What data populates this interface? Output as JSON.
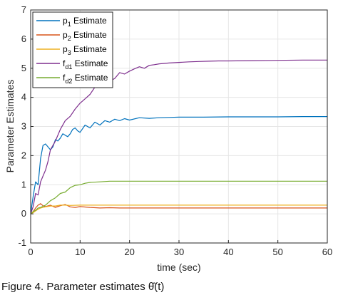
{
  "chart_data": {
    "type": "line",
    "xlabel": "time (sec)",
    "ylabel": "Parameter Estimates",
    "xlim": [
      0,
      60
    ],
    "ylim": [
      -1,
      7
    ],
    "xticks": [
      "0",
      "10",
      "20",
      "30",
      "40",
      "50",
      "60"
    ],
    "yticks": [
      "-1",
      "0",
      "1",
      "2",
      "3",
      "4",
      "5",
      "6",
      "7"
    ],
    "grid": true,
    "legend_position": "top-left",
    "series": [
      {
        "name": "p1 Estimate",
        "label_main": "p",
        "label_sub": "1",
        "label_rest": " Estimate",
        "color": "#0072BD",
        "x": [
          0,
          0.5,
          1,
          1.5,
          2,
          2.5,
          3,
          3.5,
          4,
          4.5,
          5,
          5.5,
          6,
          6.5,
          7,
          7.5,
          8,
          8.5,
          9,
          9.5,
          10,
          11,
          12,
          13,
          14,
          15,
          16,
          17,
          18,
          19,
          20,
          22,
          24,
          26,
          28,
          30,
          35,
          40,
          45,
          50,
          55,
          60
        ],
        "y": [
          0,
          0.6,
          1.1,
          1.0,
          1.9,
          2.35,
          2.4,
          2.3,
          2.2,
          2.3,
          2.55,
          2.5,
          2.6,
          2.75,
          2.7,
          2.65,
          2.75,
          2.9,
          2.95,
          2.85,
          2.8,
          3.05,
          2.95,
          3.15,
          3.05,
          3.2,
          3.15,
          3.25,
          3.2,
          3.27,
          3.22,
          3.3,
          3.28,
          3.3,
          3.31,
          3.32,
          3.32,
          3.33,
          3.33,
          3.33,
          3.34,
          3.34
        ]
      },
      {
        "name": "p2 Estimate",
        "label_main": "p",
        "label_sub": "2",
        "label_rest": " Estimate",
        "color": "#D95319",
        "x": [
          0,
          0.5,
          1,
          1.5,
          2,
          2.5,
          3,
          4,
          5,
          6,
          7,
          8,
          9,
          10,
          12,
          14,
          16,
          18,
          20,
          25,
          30,
          40,
          50,
          60
        ],
        "y": [
          0,
          0.08,
          0.2,
          0.3,
          0.35,
          0.28,
          0.25,
          0.3,
          0.22,
          0.28,
          0.32,
          0.24,
          0.22,
          0.25,
          0.22,
          0.2,
          0.21,
          0.2,
          0.2,
          0.2,
          0.2,
          0.2,
          0.2,
          0.2
        ]
      },
      {
        "name": "p3 Estimate",
        "label_main": "p",
        "label_sub": "3",
        "label_rest": " Estimate",
        "color": "#EDB120",
        "x": [
          0,
          0.5,
          1,
          1.5,
          2,
          3,
          4,
          5,
          6,
          7,
          8,
          10,
          12,
          15,
          20,
          25,
          30,
          40,
          50,
          60
        ],
        "y": [
          0,
          0.04,
          0.1,
          0.16,
          0.2,
          0.24,
          0.27,
          0.27,
          0.3,
          0.3,
          0.29,
          0.3,
          0.3,
          0.3,
          0.3,
          0.3,
          0.3,
          0.3,
          0.3,
          0.3
        ]
      },
      {
        "name": "fd1 Estimate",
        "label_main": "f",
        "label_sub": "d1",
        "label_rest": " Estimate",
        "color": "#7E2F8E",
        "x": [
          0,
          0.5,
          1,
          1.5,
          2,
          2.5,
          3,
          3.5,
          4,
          5,
          6,
          7,
          8,
          9,
          10,
          11,
          12,
          13,
          14,
          15,
          16,
          17,
          18,
          19,
          20,
          21,
          22,
          23,
          24,
          25,
          26,
          28,
          30,
          32,
          34,
          36,
          38,
          40,
          45,
          50,
          55,
          60
        ],
        "y": [
          0,
          0.25,
          0.7,
          0.65,
          1.1,
          1.3,
          1.5,
          1.8,
          2.2,
          2.5,
          2.9,
          3.2,
          3.35,
          3.6,
          3.8,
          3.95,
          4.1,
          4.35,
          4.5,
          4.6,
          4.55,
          4.65,
          4.85,
          4.8,
          4.9,
          4.98,
          5.05,
          5.0,
          5.1,
          5.12,
          5.15,
          5.18,
          5.2,
          5.22,
          5.23,
          5.24,
          5.25,
          5.25,
          5.26,
          5.27,
          5.28,
          5.28
        ]
      },
      {
        "name": "fd2 Estimate",
        "label_main": "f",
        "label_sub": "d2",
        "label_rest": " Estimate",
        "color": "#77AC30",
        "x": [
          0,
          0.5,
          1,
          1.5,
          2,
          3,
          4,
          5,
          6,
          7,
          8,
          9,
          10,
          11,
          12,
          14,
          16,
          18,
          20,
          25,
          30,
          40,
          50,
          60
        ],
        "y": [
          0,
          0.08,
          0.12,
          0.2,
          0.22,
          0.3,
          0.45,
          0.55,
          0.7,
          0.75,
          0.9,
          0.98,
          1.0,
          1.05,
          1.08,
          1.1,
          1.12,
          1.12,
          1.12,
          1.12,
          1.12,
          1.12,
          1.12,
          1.12
        ]
      }
    ]
  },
  "caption": "Figure 4. Parameter estimates θ̂(t)"
}
